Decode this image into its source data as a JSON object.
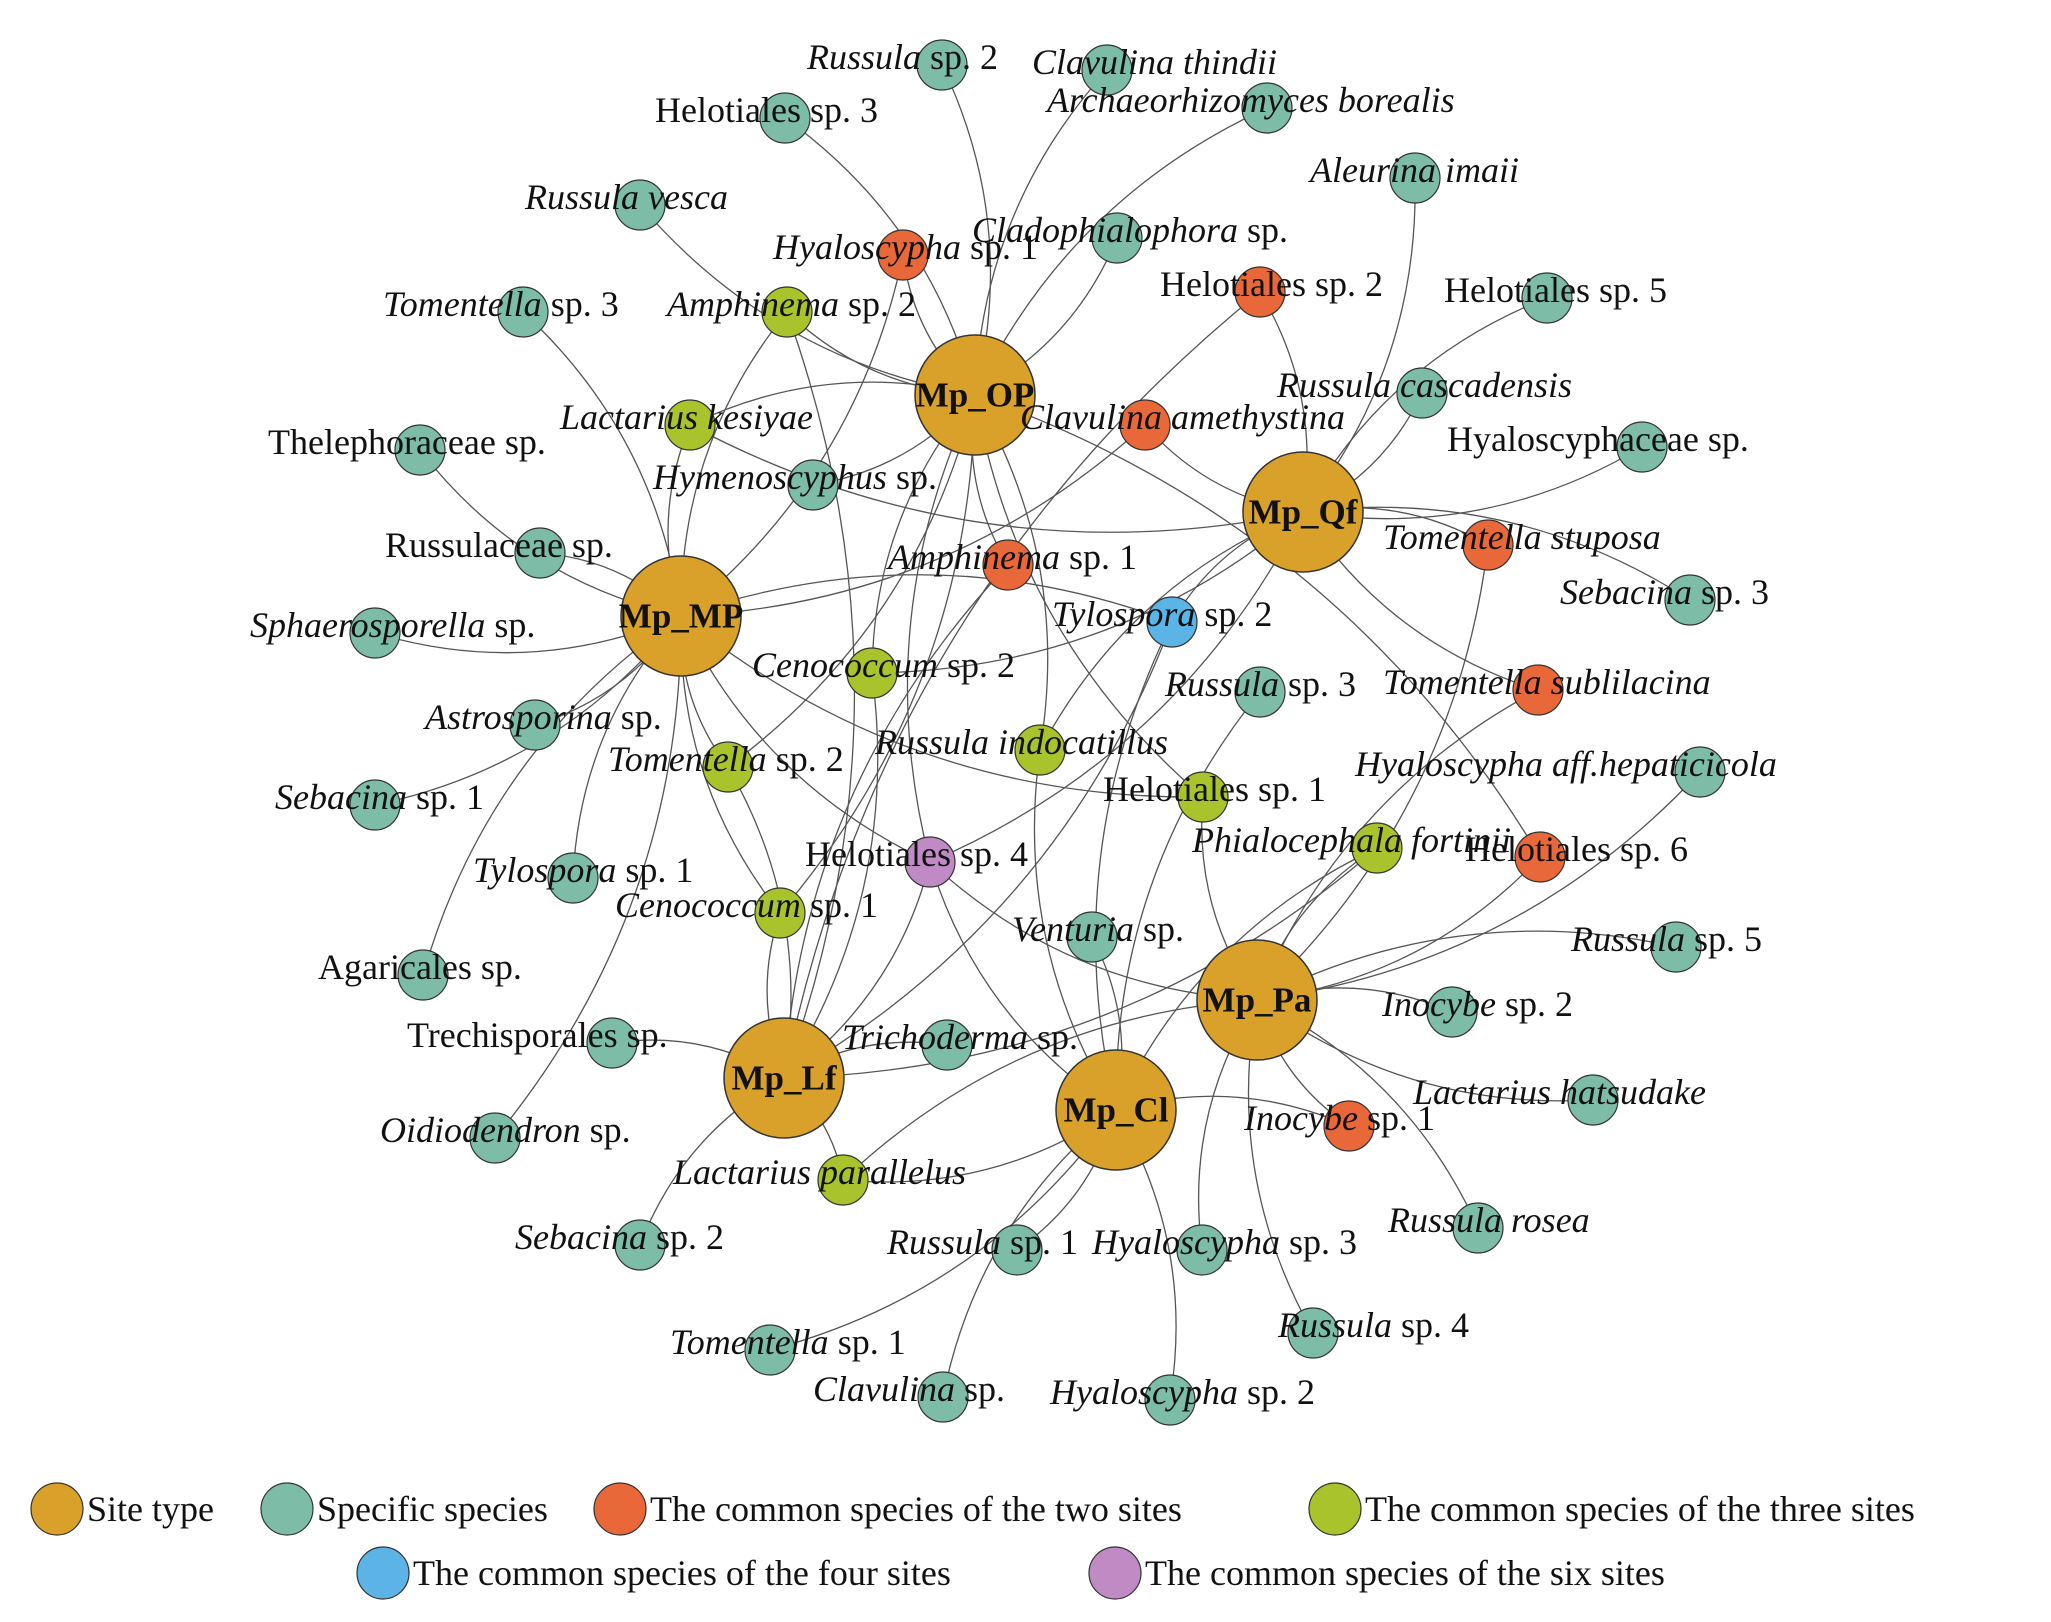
{
  "colors": {
    "site": "#D9A02A",
    "specific": "#7DBDA8",
    "two": "#E8683A",
    "three": "#A9C32C",
    "four": "#5BB4E5",
    "six": "#C08BC4",
    "edge": "#555555",
    "stroke": "#333333"
  },
  "sites": [
    {
      "id": "OP",
      "label": "Mp_OP"
    },
    {
      "id": "Qf",
      "label": "Mp_Qf"
    },
    {
      "id": "MP",
      "label": "Mp_MP"
    },
    {
      "id": "Pa",
      "label": "Mp_Pa"
    },
    {
      "id": "Lf",
      "label": "Mp_Lf"
    },
    {
      "id": "Cl",
      "label": "Mp_Cl"
    }
  ],
  "species": [
    {
      "id": "s1",
      "type": "specific",
      "parts": [
        [
          "Russula",
          1
        ],
        [
          " sp. 2",
          0
        ]
      ],
      "sites": [
        "OP"
      ]
    },
    {
      "id": "s2",
      "type": "specific",
      "parts": [
        [
          "Clavulina thindii",
          1
        ]
      ],
      "sites": [
        "OP"
      ]
    },
    {
      "id": "s3",
      "type": "specific",
      "parts": [
        [
          "Helotiales sp. 3",
          0
        ]
      ],
      "sites": [
        "OP"
      ]
    },
    {
      "id": "s4",
      "type": "specific",
      "parts": [
        [
          "Archaeorhizomyces borealis",
          1
        ]
      ],
      "sites": [
        "OP"
      ]
    },
    {
      "id": "s5",
      "type": "specific",
      "parts": [
        [
          "Aleurina imaii",
          1
        ]
      ],
      "sites": [
        "Qf"
      ]
    },
    {
      "id": "s6",
      "type": "specific",
      "parts": [
        [
          "Russula vesca",
          1
        ]
      ],
      "sites": [
        "OP"
      ]
    },
    {
      "id": "s7",
      "type": "specific",
      "parts": [
        [
          "Cladophialophora",
          1
        ],
        [
          " sp.",
          0
        ]
      ],
      "sites": [
        "OP"
      ]
    },
    {
      "id": "s8",
      "type": "two",
      "parts": [
        [
          "Hyaloscypha",
          1
        ],
        [
          " sp. 1",
          0
        ]
      ],
      "sites": [
        "OP",
        "MP"
      ]
    },
    {
      "id": "s9",
      "type": "two",
      "parts": [
        [
          "Helotiales sp. 2",
          0
        ]
      ],
      "sites": [
        "Qf",
        "Lf"
      ]
    },
    {
      "id": "s10",
      "type": "specific",
      "parts": [
        [
          "Helotiales sp. 5",
          0
        ]
      ],
      "sites": [
        "Qf"
      ]
    },
    {
      "id": "s11",
      "type": "specific",
      "parts": [
        [
          "Tomentella",
          1
        ],
        [
          " sp. 3",
          0
        ]
      ],
      "sites": [
        "MP"
      ]
    },
    {
      "id": "s12",
      "type": "three",
      "parts": [
        [
          "Amphinema",
          1
        ],
        [
          " sp. 2",
          0
        ]
      ],
      "sites": [
        "MP",
        "Lf",
        "OP"
      ]
    },
    {
      "id": "s13",
      "type": "specific",
      "parts": [
        [
          "Russula cascadensis",
          1
        ]
      ],
      "sites": [
        "Qf"
      ]
    },
    {
      "id": "s14",
      "type": "three",
      "parts": [
        [
          "Lactarius kesiyae",
          1
        ]
      ],
      "sites": [
        "MP",
        "OP",
        "Qf"
      ]
    },
    {
      "id": "s15",
      "type": "two",
      "parts": [
        [
          "Clavulina amethystina",
          1
        ]
      ],
      "sites": [
        "MP",
        "Qf"
      ]
    },
    {
      "id": "s16",
      "type": "specific",
      "parts": [
        [
          "Thelephoraceae sp.",
          0
        ]
      ],
      "sites": [
        "MP"
      ]
    },
    {
      "id": "s17",
      "type": "specific",
      "parts": [
        [
          "Hyaloscyphaceae sp.",
          0
        ]
      ],
      "sites": [
        "Qf"
      ]
    },
    {
      "id": "s18",
      "type": "specific",
      "parts": [
        [
          "Hymenoscyphus",
          1
        ],
        [
          " sp.",
          0
        ]
      ],
      "sites": [
        "OP"
      ]
    },
    {
      "id": "s19",
      "type": "specific",
      "parts": [
        [
          "Russulaceae sp.",
          0
        ]
      ],
      "sites": [
        "MP"
      ]
    },
    {
      "id": "s20",
      "type": "two",
      "parts": [
        [
          "Tomentella stuposa",
          1
        ]
      ],
      "sites": [
        "Qf",
        "Pa"
      ]
    },
    {
      "id": "s21",
      "type": "two",
      "parts": [
        [
          "Amphinema",
          1
        ],
        [
          " sp. 1",
          0
        ]
      ],
      "sites": [
        "OP",
        "Lf"
      ]
    },
    {
      "id": "s22",
      "type": "specific",
      "parts": [
        [
          "Sebacina",
          1
        ],
        [
          " sp. 3",
          0
        ]
      ],
      "sites": [
        "Qf"
      ]
    },
    {
      "id": "s23",
      "type": "four",
      "parts": [
        [
          "Tylospora",
          1
        ],
        [
          " sp. 2",
          0
        ]
      ],
      "sites": [
        "Qf",
        "MP",
        "Lf",
        "Cl"
      ]
    },
    {
      "id": "s24",
      "type": "specific",
      "parts": [
        [
          "Sphaerosporella",
          1
        ],
        [
          " sp.",
          0
        ]
      ],
      "sites": [
        "MP"
      ]
    },
    {
      "id": "s25",
      "type": "three",
      "parts": [
        [
          "Cenococcum",
          1
        ],
        [
          " sp. 2",
          0
        ]
      ],
      "sites": [
        "OP",
        "Qf",
        "Lf"
      ]
    },
    {
      "id": "s26",
      "type": "specific",
      "parts": [
        [
          "Russula",
          1
        ],
        [
          " sp. 3",
          0
        ]
      ],
      "sites": [
        "Cl"
      ]
    },
    {
      "id": "s27",
      "type": "two",
      "parts": [
        [
          "Tomentella sublilacina",
          1
        ]
      ],
      "sites": [
        "Qf",
        "Pa"
      ]
    },
    {
      "id": "s28",
      "type": "specific",
      "parts": [
        [
          "Astrosporina",
          1
        ],
        [
          " sp.",
          0
        ]
      ],
      "sites": [
        "MP"
      ]
    },
    {
      "id": "s29",
      "type": "three",
      "parts": [
        [
          "Tomentella",
          1
        ],
        [
          " sp. 2",
          0
        ]
      ],
      "sites": [
        "MP",
        "OP",
        "Lf"
      ]
    },
    {
      "id": "s30",
      "type": "three",
      "parts": [
        [
          "Russula indocatillus",
          1
        ]
      ],
      "sites": [
        "OP",
        "Qf",
        "Cl"
      ]
    },
    {
      "id": "s31",
      "type": "specific",
      "parts": [
        [
          "Hyaloscypha aff.hepaticicola",
          1
        ]
      ],
      "sites": [
        "Pa"
      ]
    },
    {
      "id": "s32",
      "type": "specific",
      "parts": [
        [
          "Sebacina",
          1
        ],
        [
          " sp. 1",
          0
        ]
      ],
      "sites": [
        "MP"
      ]
    },
    {
      "id": "s33",
      "type": "three",
      "parts": [
        [
          "Helotiales sp. 1",
          0
        ]
      ],
      "sites": [
        "MP",
        "Pa",
        "OP"
      ]
    },
    {
      "id": "s34",
      "type": "three",
      "parts": [
        [
          "Phialocephala fortinii",
          1
        ]
      ],
      "sites": [
        "Pa",
        "Lf",
        "Cl"
      ]
    },
    {
      "id": "s35",
      "type": "six",
      "parts": [
        [
          "Helotiales sp. 4",
          0
        ]
      ],
      "sites": [
        "OP",
        "Qf",
        "MP",
        "Pa",
        "Lf",
        "Cl"
      ]
    },
    {
      "id": "s36",
      "type": "two",
      "parts": [
        [
          "Helotiales sp. 6",
          0
        ]
      ],
      "sites": [
        "OP",
        "Pa"
      ]
    },
    {
      "id": "s37",
      "type": "specific",
      "parts": [
        [
          "Tylospora",
          1
        ],
        [
          " sp. 1",
          0
        ]
      ],
      "sites": [
        "MP"
      ]
    },
    {
      "id": "s38",
      "type": "three",
      "parts": [
        [
          "Cenococcum",
          1
        ],
        [
          " sp. 1",
          0
        ]
      ],
      "sites": [
        "Lf",
        "MP",
        "OP"
      ]
    },
    {
      "id": "s39",
      "type": "specific",
      "parts": [
        [
          "Venturia",
          1
        ],
        [
          " sp.",
          0
        ]
      ],
      "sites": [
        "Cl"
      ]
    },
    {
      "id": "s40",
      "type": "specific",
      "parts": [
        [
          "Russula",
          1
        ],
        [
          " sp. 5",
          0
        ]
      ],
      "sites": [
        "Pa"
      ]
    },
    {
      "id": "s41",
      "type": "specific",
      "parts": [
        [
          "Agaricales sp.",
          0
        ]
      ],
      "sites": [
        "MP"
      ]
    },
    {
      "id": "s42",
      "type": "specific",
      "parts": [
        [
          "Inocybe",
          1
        ],
        [
          " sp. 2",
          0
        ]
      ],
      "sites": [
        "Pa"
      ]
    },
    {
      "id": "s43",
      "type": "specific",
      "parts": [
        [
          "Trechisporales sp.",
          0
        ]
      ],
      "sites": [
        "Lf"
      ]
    },
    {
      "id": "s44",
      "type": "specific",
      "parts": [
        [
          "Trichoderma",
          1
        ],
        [
          " sp.",
          0
        ]
      ],
      "sites": [
        "Lf"
      ]
    },
    {
      "id": "s45",
      "type": "specific",
      "parts": [
        [
          "Lactarius hatsudake",
          1
        ]
      ],
      "sites": [
        "Pa"
      ]
    },
    {
      "id": "s46",
      "type": "specific",
      "parts": [
        [
          "Oidiodendron",
          1
        ],
        [
          " sp.",
          0
        ]
      ],
      "sites": [
        "MP"
      ]
    },
    {
      "id": "s47",
      "type": "two",
      "parts": [
        [
          "Inocybe",
          1
        ],
        [
          " sp. 1",
          0
        ]
      ],
      "sites": [
        "Pa",
        "Cl"
      ]
    },
    {
      "id": "s48",
      "type": "three",
      "parts": [
        [
          "Lactarius parallelus",
          1
        ]
      ],
      "sites": [
        "Lf",
        "Pa",
        "Cl"
      ]
    },
    {
      "id": "s49",
      "type": "specific",
      "parts": [
        [
          "Sebacina",
          1
        ],
        [
          " sp. 2",
          0
        ]
      ],
      "sites": [
        "Lf"
      ]
    },
    {
      "id": "s50",
      "type": "specific",
      "parts": [
        [
          "Russula",
          1
        ],
        [
          " sp. 1",
          0
        ]
      ],
      "sites": [
        "Cl"
      ]
    },
    {
      "id": "s51",
      "type": "specific",
      "parts": [
        [
          "Hyaloscypha",
          1
        ],
        [
          " sp. 3",
          0
        ]
      ],
      "sites": [
        "Pa"
      ]
    },
    {
      "id": "s52",
      "type": "specific",
      "parts": [
        [
          "Russula rosea",
          1
        ]
      ],
      "sites": [
        "Pa"
      ]
    },
    {
      "id": "s53",
      "type": "specific",
      "parts": [
        [
          "Russula",
          1
        ],
        [
          " sp. 4",
          0
        ]
      ],
      "sites": [
        "Pa"
      ]
    },
    {
      "id": "s54",
      "type": "specific",
      "parts": [
        [
          "Tomentella",
          1
        ],
        [
          " sp. 1",
          0
        ]
      ],
      "sites": [
        "Cl"
      ]
    },
    {
      "id": "s55",
      "type": "specific",
      "parts": [
        [
          "Clavulina",
          1
        ],
        [
          " sp.",
          0
        ]
      ],
      "sites": [
        "Cl"
      ]
    },
    {
      "id": "s56",
      "type": "specific",
      "parts": [
        [
          "Hyaloscypha",
          1
        ],
        [
          " sp. 2",
          0
        ]
      ],
      "sites": [
        "Cl"
      ]
    }
  ],
  "legend": [
    {
      "type": "site",
      "label": "Site type"
    },
    {
      "type": "specific",
      "label": "Specific species"
    },
    {
      "type": "two",
      "label": "The common species of the two sites"
    },
    {
      "type": "three",
      "label": "The common species of the three sites"
    },
    {
      "type": "four",
      "label": "The common species of the four sites"
    },
    {
      "type": "six",
      "label": "The common species of the six sites"
    }
  ]
}
